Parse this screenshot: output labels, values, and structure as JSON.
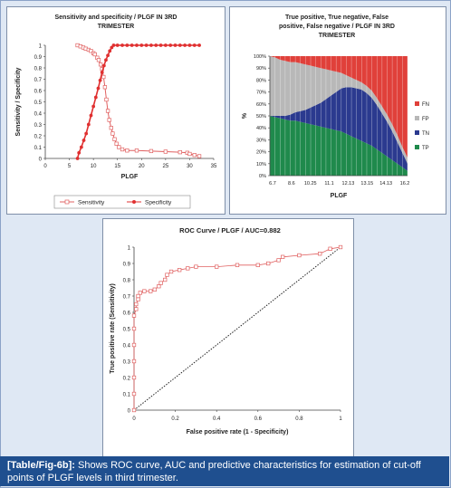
{
  "chart_data": [
    {
      "type": "line",
      "title": "Sensitivity and specificity / PLGF IN 3RD TRIMESTER",
      "xlabel": "PLGF",
      "ylabel": "Sensitivity / Specificity",
      "xlim": [
        0,
        35
      ],
      "ylim": [
        0,
        1
      ],
      "xticks": [
        "0",
        "5",
        "10",
        "15",
        "20",
        "25",
        "30",
        "35"
      ],
      "yticks": [
        "0",
        "0.1",
        "0.2",
        "0.3",
        "0.4",
        "0.5",
        "0.6",
        "0.7",
        "0.8",
        "0.9",
        "1"
      ],
      "series": [
        {
          "name": "Sensitivity",
          "color": "#e06060",
          "marker": "open-square",
          "points": [
            [
              6.7,
              1
            ],
            [
              7.3,
              0.99
            ],
            [
              7.9,
              0.98
            ],
            [
              8.4,
              0.97
            ],
            [
              9,
              0.96
            ],
            [
              9.5,
              0.95
            ],
            [
              10,
              0.93
            ],
            [
              10.3,
              0.92
            ],
            [
              10.8,
              0.89
            ],
            [
              11.1,
              0.87
            ],
            [
              11.5,
              0.83
            ],
            [
              11.8,
              0.79
            ],
            [
              12.1,
              0.72
            ],
            [
              12.4,
              0.63
            ],
            [
              12.7,
              0.52
            ],
            [
              13,
              0.42
            ],
            [
              13.3,
              0.34
            ],
            [
              13.7,
              0.27
            ],
            [
              14,
              0.22
            ],
            [
              14.4,
              0.17
            ],
            [
              14.8,
              0.13
            ],
            [
              15.3,
              0.1
            ],
            [
              16,
              0.08
            ],
            [
              17,
              0.07
            ],
            [
              19,
              0.07
            ],
            [
              22,
              0.065
            ],
            [
              25,
              0.06
            ],
            [
              28,
              0.055
            ],
            [
              29.5,
              0.05
            ],
            [
              30,
              0.04
            ],
            [
              31,
              0.03
            ],
            [
              32,
              0.02
            ]
          ]
        },
        {
          "name": "Specificity",
          "color": "#e03030",
          "marker": "filled-circle",
          "points": [
            [
              6.7,
              0
            ],
            [
              7,
              0.05
            ],
            [
              7.5,
              0.1
            ],
            [
              8,
              0.16
            ],
            [
              8.5,
              0.22
            ],
            [
              9,
              0.3
            ],
            [
              9.5,
              0.38
            ],
            [
              10,
              0.46
            ],
            [
              10.5,
              0.54
            ],
            [
              11,
              0.62
            ],
            [
              11.4,
              0.69
            ],
            [
              11.8,
              0.76
            ],
            [
              12.2,
              0.82
            ],
            [
              12.6,
              0.87
            ],
            [
              13,
              0.91
            ],
            [
              13.4,
              0.95
            ],
            [
              13.8,
              0.98
            ],
            [
              14.2,
              1
            ],
            [
              15,
              1
            ],
            [
              16,
              1
            ],
            [
              17,
              1
            ],
            [
              18,
              1
            ],
            [
              19,
              1
            ],
            [
              20,
              1
            ],
            [
              21,
              1
            ],
            [
              22,
              1
            ],
            [
              23,
              1
            ],
            [
              24,
              1
            ],
            [
              25,
              1
            ],
            [
              26,
              1
            ],
            [
              27,
              1
            ],
            [
              28,
              1
            ],
            [
              29,
              1
            ],
            [
              30,
              1
            ],
            [
              31,
              1
            ],
            [
              32,
              1
            ]
          ]
        }
      ],
      "legend": [
        "Sensitivity",
        "Specificity"
      ],
      "legend_position": "bottom"
    },
    {
      "type": "area",
      "title": "True positive, True negative, False positive, False negative / PLGF IN 3RD TRIMESTER",
      "xlabel": "PLGF",
      "ylabel": "%",
      "ylim": [
        0,
        100
      ],
      "yticks": [
        "0%",
        "10%",
        "20%",
        "30%",
        "40%",
        "50%",
        "60%",
        "70%",
        "80%",
        "90%",
        "100%"
      ],
      "xticks": [
        "6.7",
        "8.6",
        "10.25",
        "11.1",
        "12.13",
        "13.15",
        "14.13",
        "16.2"
      ],
      "stacked": true,
      "series_order_bottom_to_top": [
        "TP",
        "TN",
        "FP",
        "FN"
      ],
      "series": [
        {
          "name": "TP",
          "color": "#1f8a4c",
          "values": [
            50,
            49,
            48,
            47,
            46,
            46,
            45,
            44,
            43,
            42,
            41,
            40,
            39,
            38,
            37,
            35,
            33,
            31,
            29,
            27,
            25,
            22,
            19,
            16,
            13,
            10,
            7,
            4
          ]
        },
        {
          "name": "TN",
          "color": "#2b3a8f",
          "values": [
            0,
            1,
            2,
            3,
            5,
            7,
            9,
            11,
            14,
            17,
            20,
            24,
            28,
            32,
            36,
            39,
            41,
            42,
            43,
            42,
            40,
            37,
            33,
            29,
            24,
            18,
            12,
            6
          ]
        },
        {
          "name": "FP",
          "color": "#b8b8b8",
          "values": [
            50,
            49,
            47,
            46,
            44,
            42,
            40,
            38,
            35,
            32,
            29,
            25,
            21,
            17,
            13,
            10,
            8,
            7,
            6,
            6,
            6,
            6,
            6,
            6,
            6,
            6,
            5,
            5
          ]
        },
        {
          "name": "FN",
          "color": "#e0403a",
          "values": [
            0,
            1,
            3,
            4,
            5,
            5,
            6,
            7,
            8,
            9,
            10,
            11,
            12,
            13,
            14,
            16,
            18,
            20,
            22,
            25,
            29,
            35,
            42,
            49,
            57,
            66,
            76,
            85
          ]
        }
      ],
      "legend": [
        "FN",
        "FP",
        "TN",
        "TP"
      ],
      "legend_position": "right"
    },
    {
      "type": "line",
      "title": "ROC Curve / PLGF / AUC=0.882",
      "xlabel": "False positive rate (1 - Specificity)",
      "ylabel": "True positive rate (Sensitivity)",
      "xlim": [
        0,
        1
      ],
      "ylim": [
        0,
        1
      ],
      "xticks": [
        "0",
        "0.2",
        "0.4",
        "0.6",
        "0.8",
        "1"
      ],
      "yticks": [
        "0",
        "0.1",
        "0.2",
        "0.3",
        "0.4",
        "0.5",
        "0.6",
        "0.7",
        "0.8",
        "0.9",
        "1"
      ],
      "series": [
        {
          "name": "ROC",
          "color": "#e06060",
          "marker": "open-square",
          "points": [
            [
              0,
              0
            ],
            [
              0,
              0.1
            ],
            [
              0,
              0.2
            ],
            [
              0,
              0.3
            ],
            [
              0,
              0.4
            ],
            [
              0,
              0.5
            ],
            [
              0,
              0.58
            ],
            [
              0.01,
              0.62
            ],
            [
              0.01,
              0.65
            ],
            [
              0.02,
              0.68
            ],
            [
              0.02,
              0.7
            ],
            [
              0.03,
              0.72
            ],
            [
              0.05,
              0.73
            ],
            [
              0.08,
              0.73
            ],
            [
              0.1,
              0.74
            ],
            [
              0.12,
              0.76
            ],
            [
              0.13,
              0.78
            ],
            [
              0.15,
              0.8
            ],
            [
              0.16,
              0.83
            ],
            [
              0.18,
              0.85
            ],
            [
              0.22,
              0.86
            ],
            [
              0.26,
              0.87
            ],
            [
              0.3,
              0.88
            ],
            [
              0.4,
              0.88
            ],
            [
              0.5,
              0.89
            ],
            [
              0.6,
              0.89
            ],
            [
              0.65,
              0.9
            ],
            [
              0.7,
              0.92
            ],
            [
              0.72,
              0.94
            ],
            [
              0.8,
              0.95
            ],
            [
              0.9,
              0.96
            ],
            [
              0.95,
              0.99
            ],
            [
              1,
              1
            ]
          ]
        },
        {
          "name": "Reference",
          "color": "#222222",
          "style": "dotted",
          "points": [
            [
              0,
              0
            ],
            [
              1,
              1
            ]
          ]
        }
      ]
    }
  ],
  "caption": {
    "label": "[Table/Fig-6b]:",
    "text": " Shows ROC curve, AUC and predictive characteristics for estimation of cut-off points of PLGF levels in third trimester."
  }
}
